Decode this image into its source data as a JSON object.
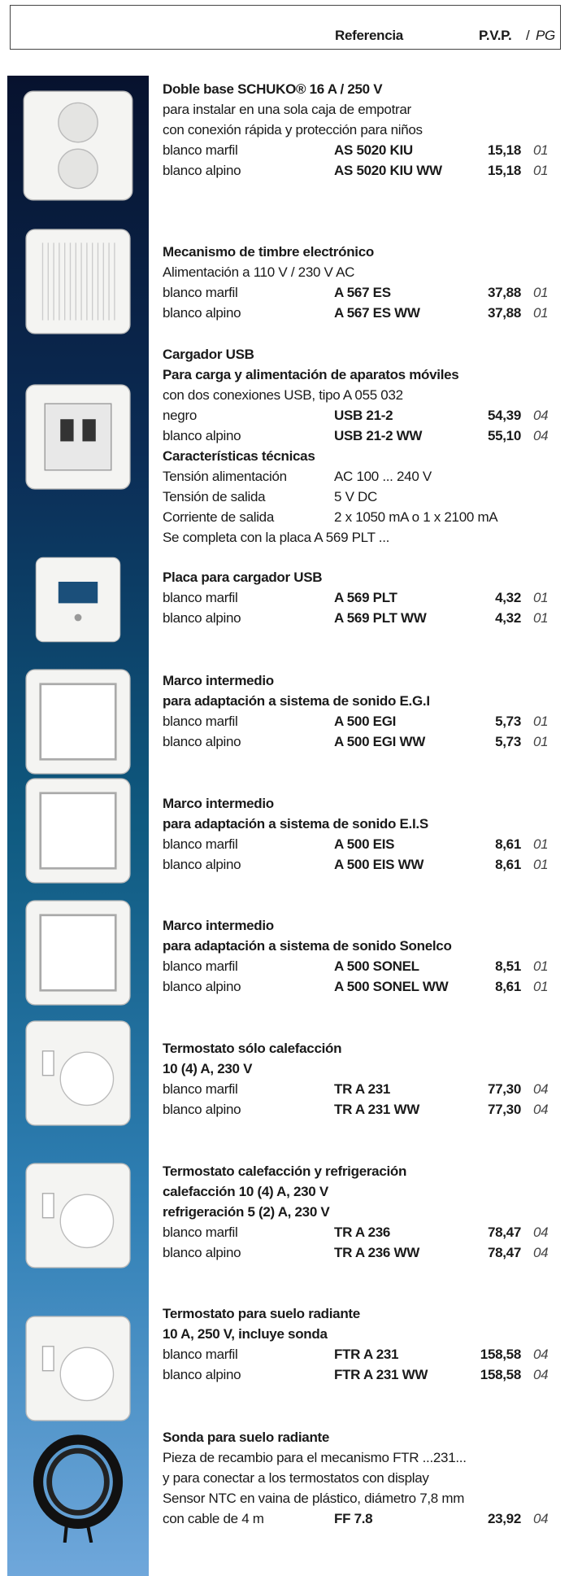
{
  "header": {
    "reference": "Referencia",
    "price": "P.V.P.",
    "separator": "/",
    "pg": "PG"
  },
  "products": [
    {
      "title": [
        "Doble base SCHUKO® 16 A / 250 V"
      ],
      "lines": [
        "para instalar en una sola caja de empotrar",
        "con conexión rápida y protección para niños"
      ],
      "rows": [
        {
          "variant": "blanco marfil",
          "ref": "AS 5020 KIU",
          "price": "15,18",
          "pg": "01"
        },
        {
          "variant": "blanco alpino",
          "ref": "AS 5020 KIU WW",
          "price": "15,18",
          "pg": "01"
        }
      ]
    },
    {
      "title": [
        "Mecanismo de timbre electrónico"
      ],
      "lines": [
        "Alimentación a 110 V / 230 V AC"
      ],
      "rows": [
        {
          "variant": "blanco marfil",
          "ref": "A 567 ES",
          "price": "37,88",
          "pg": "01"
        },
        {
          "variant": "blanco alpino",
          "ref": "A 567 ES WW",
          "price": "37,88",
          "pg": "01"
        }
      ]
    },
    {
      "title": [
        "Cargador USB",
        "Para carga y alimentación de aparatos móviles"
      ],
      "lines": [
        "con dos conexiones USB, tipo A 055 032"
      ],
      "rows": [
        {
          "variant": "negro",
          "ref": "USB 21-2",
          "price": "54,39",
          "pg": "04"
        },
        {
          "variant": "blanco alpino",
          "ref": "USB 21-2 WW",
          "price": "55,10",
          "pg": "04"
        }
      ],
      "specs": {
        "heading": "Características técnicas",
        "items": [
          {
            "label": "Tensión alimentación",
            "value": "AC 100 ... 240 V"
          },
          {
            "label": "Tensión de salida",
            "value": "5 V DC"
          },
          {
            "label": "Corriente de salida",
            "value": "2 x 1050 mA o 1 x 2100 mA"
          }
        ],
        "note": "Se completa con la placa A 569 PLT ..."
      }
    },
    {
      "title": [
        "Placa para cargador USB"
      ],
      "lines": [],
      "rows": [
        {
          "variant": "blanco marfil",
          "ref": "A 569 PLT",
          "price": "4,32",
          "pg": "01"
        },
        {
          "variant": "blanco alpino",
          "ref": "A 569 PLT WW",
          "price": "4,32",
          "pg": "01"
        }
      ]
    },
    {
      "title": [
        "Marco intermedio",
        "para adaptación a sistema de sonido E.G.I"
      ],
      "lines": [],
      "rows": [
        {
          "variant": "blanco marfil",
          "ref": "A 500 EGI",
          "price": "5,73",
          "pg": "01"
        },
        {
          "variant": "blanco alpino",
          "ref": "A 500 EGI WW",
          "price": "5,73",
          "pg": "01"
        }
      ]
    },
    {
      "title": [
        "Marco intermedio",
        "para adaptación a sistema de sonido E.I.S"
      ],
      "lines": [],
      "rows": [
        {
          "variant": "blanco marfil",
          "ref": "A 500 EIS",
          "price": "8,61",
          "pg": "01"
        },
        {
          "variant": "blanco alpino",
          "ref": "A 500 EIS WW",
          "price": "8,61",
          "pg": "01"
        }
      ]
    },
    {
      "title": [
        "Marco intermedio",
        "para adaptación a sistema de sonido Sonelco"
      ],
      "lines": [],
      "rows": [
        {
          "variant": "blanco marfil",
          "ref": "A 500 SONEL",
          "price": "8,51",
          "pg": "01"
        },
        {
          "variant": "blanco alpino",
          "ref": "A 500 SONEL WW",
          "price": "8,61",
          "pg": "01"
        }
      ]
    },
    {
      "title": [
        "Termostato sólo calefacción",
        "10 (4) A, 230 V"
      ],
      "lines": [],
      "rows": [
        {
          "variant": "blanco marfil",
          "ref": "TR A 231",
          "price": "77,30",
          "pg": "04"
        },
        {
          "variant": "blanco alpino",
          "ref": "TR A 231 WW",
          "price": "77,30",
          "pg": "04"
        }
      ]
    },
    {
      "title": [
        "Termostato calefacción y refrigeración",
        "calefacción 10 (4) A, 230 V",
        "refrigeración 5 (2) A, 230 V"
      ],
      "lines": [],
      "rows": [
        {
          "variant": "blanco marfil",
          "ref": "TR A 236",
          "price": "78,47",
          "pg": "04"
        },
        {
          "variant": "blanco alpino",
          "ref": "TR A 236 WW",
          "price": "78,47",
          "pg": "04"
        }
      ]
    },
    {
      "title": [
        "Termostato para suelo radiante",
        "10 A, 250 V, incluye sonda"
      ],
      "lines": [],
      "rows": [
        {
          "variant": "blanco marfil",
          "ref": "FTR A 231",
          "price": "158,58",
          "pg": "04"
        },
        {
          "variant": "blanco alpino",
          "ref": "FTR A 231 WW",
          "price": "158,58",
          "pg": "04"
        }
      ]
    },
    {
      "title": [
        "Sonda para suelo radiante"
      ],
      "lines": [
        "Pieza de recambio para el mecanismo FTR ...231...",
        "y para conectar a los termostatos con display",
        "Sensor NTC en vaina de plástico, diámetro 7,8 mm"
      ],
      "rows": [
        {
          "variant": "con cable de 4 m",
          "ref": "FF 7.8",
          "price": "23,92",
          "pg": "04"
        }
      ]
    }
  ]
}
